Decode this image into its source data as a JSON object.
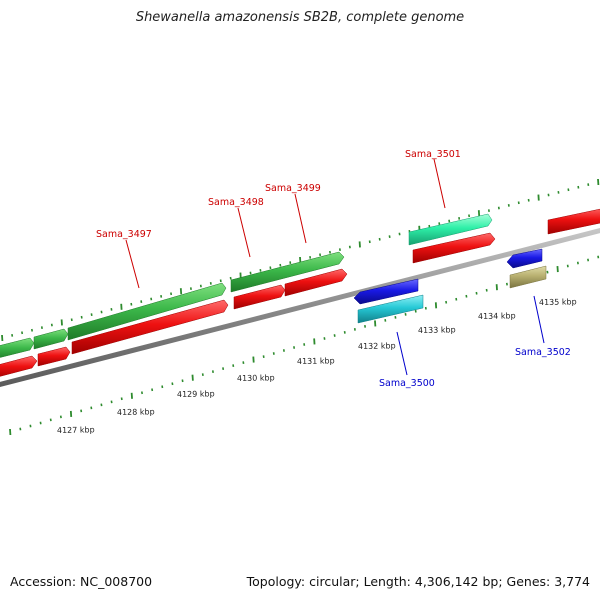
{
  "title": "Shewanella amazonensis SB2B, complete genome",
  "footer": {
    "accession": "Accession: NC_008700",
    "summary": "Topology: circular; Length: 4,306,142 bp; Genes: 3,774"
  },
  "colors": {
    "backbone": "#8a8a8a",
    "tick": "#2e8b2e",
    "forward_label": "#cc0000",
    "reverse_label": "#0000cc",
    "green_gene": "#3cb84a",
    "red_gene": "#ee1111",
    "blue_gene": "#1a1ae6",
    "cyan_gene": "#26c9d6",
    "teal_gene": "#2ef0a8",
    "olive_gene": "#b8b070"
  },
  "scale_labels": [
    "4127 kbp",
    "4128 kbp",
    "4129 kbp",
    "4130 kbp",
    "4131 kbp",
    "4132 kbp",
    "4133 kbp",
    "4134 kbp",
    "4135 kbp"
  ],
  "gene_labels": [
    {
      "text": "Sama_3497",
      "strand": "forward"
    },
    {
      "text": "Sama_3498",
      "strand": "forward"
    },
    {
      "text": "Sama_3499",
      "strand": "forward"
    },
    {
      "text": "Sama_3501",
      "strand": "forward"
    },
    {
      "text": "Sama_3500",
      "strand": "reverse"
    },
    {
      "text": "Sama_3502",
      "strand": "reverse"
    }
  ]
}
